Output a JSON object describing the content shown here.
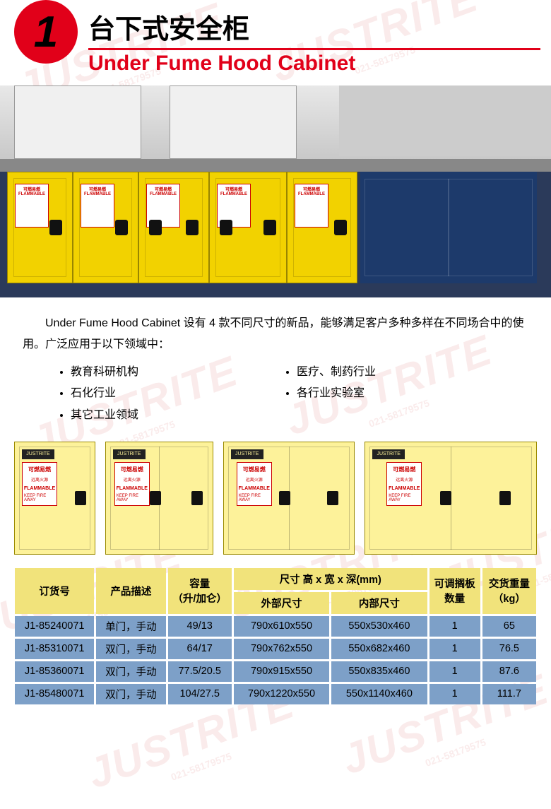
{
  "header": {
    "badge_number": "1",
    "title_cn": "台下式安全柜",
    "title_en": "Under Fume Hood Cabinet",
    "accent_color": "#e10019"
  },
  "watermark": {
    "brand": "JUSTRITE",
    "phone": "021-58179575",
    "color": "#b00000"
  },
  "photo": {
    "brand_plate": "JUSTRITE",
    "warning_cn": "可燃易燃",
    "warning_en": "FLAMMABLE",
    "warning_sub": "KEEP FIRE AWAY",
    "cabinet_color": "#f2d200",
    "blue_cabinet_color": "#1d3a6b"
  },
  "description": {
    "paragraph": "Under Fume Hood Cabinet 设有 4 款不同尺寸的新品，能够满足客户多种多样在不同场合中的使用。广泛应用于以下领域中：",
    "bullets_left": [
      "教育科研机构",
      "石化行业",
      "其它工业领域"
    ],
    "bullets_right": [
      "医疗、制药行业",
      "各行业实验室"
    ]
  },
  "drawings": {
    "plate": "JUSTRITE",
    "label_cn": "可燃易燃",
    "label_sub_cn": "远离火源",
    "label_en": "FLAMMABLE",
    "label_sub_en": "KEEP FIRE AWAY",
    "fill_color": "#fdf29a"
  },
  "table": {
    "header_bg": "#f1e37b",
    "row_bg": "#7da0c8",
    "columns": {
      "code": "订货号",
      "desc": "产品描述",
      "capacity": "容量\n（升/加仑）",
      "dim_group": "尺寸 高 x 宽 x 深(mm)",
      "dim_ext": "外部尺寸",
      "dim_int": "内部尺寸",
      "shelf": "可调搁板\n数量",
      "weight": "交货重量\n（kg）"
    },
    "rows": [
      {
        "code": "J1-85240071",
        "desc": "单门，手动",
        "capacity": "49/13",
        "ext": "790x610x550",
        "int": "550x530x460",
        "shelf": "1",
        "weight": "65"
      },
      {
        "code": "J1-85310071",
        "desc": "双门，手动",
        "capacity": "64/17",
        "ext": "790x762x550",
        "int": "550x682x460",
        "shelf": "1",
        "weight": "76.5"
      },
      {
        "code": "J1-85360071",
        "desc": "双门，手动",
        "capacity": "77.5/20.5",
        "ext": "790x915x550",
        "int": "550x835x460",
        "shelf": "1",
        "weight": "87.6"
      },
      {
        "code": "J1-85480071",
        "desc": "双门，手动",
        "capacity": "104/27.5",
        "ext": "790x1220x550",
        "int": "550x1140x460",
        "shelf": "1",
        "weight": "111.7"
      }
    ]
  }
}
